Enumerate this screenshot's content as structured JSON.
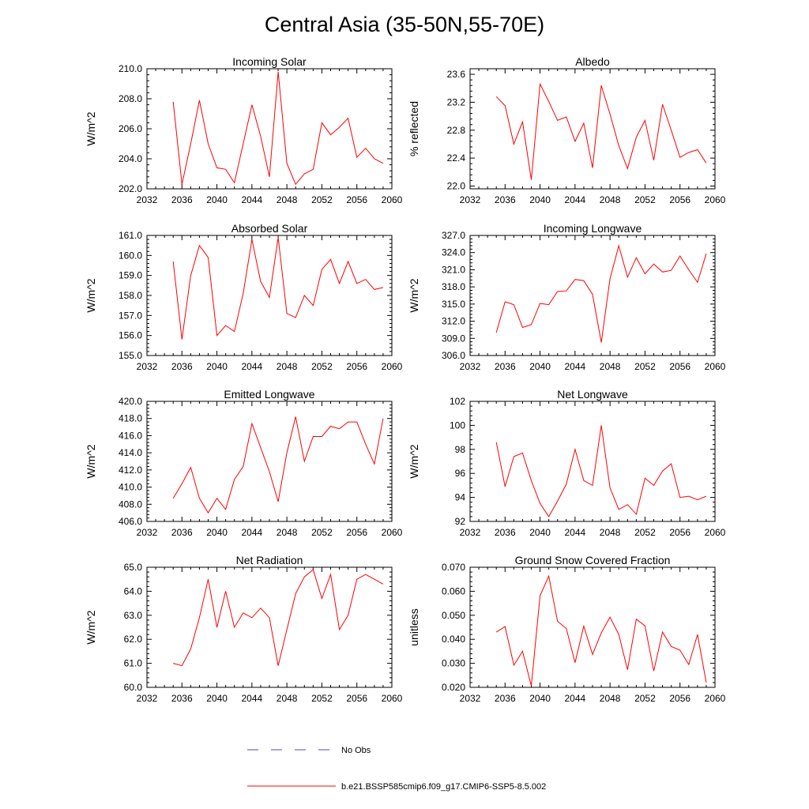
{
  "figure": {
    "title": "Central Asia (35-50N,55-70E)",
    "legend": [
      {
        "label": "No Obs",
        "style": "dashed",
        "color": "#4a4aa8"
      },
      {
        "label": "b.e21.BSSP585cmip6.f09_g17.CMIP6-SSP5-8.5.002",
        "style": "solid",
        "color": "#ff0000"
      }
    ]
  },
  "chart_data": [
    {
      "type": "line",
      "title": "Incoming Solar",
      "ylabel": "W/m^2",
      "xlim": [
        2032,
        2060
      ],
      "ylim": [
        202.0,
        210.0
      ],
      "xticks": [
        2032,
        2036,
        2040,
        2044,
        2048,
        2052,
        2056,
        2060
      ],
      "yticks": [
        "202.0",
        "204.0",
        "206.0",
        "208.0",
        "210.0"
      ],
      "line_color": "#ff0000",
      "x": [
        2035,
        2036,
        2037,
        2038,
        2039,
        2040,
        2041,
        2042,
        2043,
        2044,
        2045,
        2046,
        2047,
        2048,
        2049,
        2050,
        2051,
        2052,
        2053,
        2054,
        2055,
        2056,
        2057,
        2058,
        2059
      ],
      "y": [
        207.8,
        202.3,
        205.0,
        207.9,
        205.0,
        203.4,
        203.3,
        202.4,
        205.0,
        207.6,
        205.5,
        202.8,
        209.8,
        203.7,
        202.3,
        203.0,
        203.3,
        206.4,
        205.6,
        206.1,
        206.7,
        204.1,
        204.7,
        204.0,
        203.7
      ]
    },
    {
      "type": "line",
      "title": "Albedo",
      "ylabel": "% reflected",
      "xlim": [
        2032,
        2060
      ],
      "ylim": [
        21.96,
        23.68
      ],
      "xticks": [
        2032,
        2036,
        2040,
        2044,
        2048,
        2052,
        2056,
        2060
      ],
      "yticks": [
        "22.0",
        "22.4",
        "22.8",
        "23.2",
        "23.6"
      ],
      "line_color": "#ff0000",
      "x": [
        2035,
        2036,
        2037,
        2038,
        2039,
        2040,
        2041,
        2042,
        2043,
        2044,
        2045,
        2046,
        2047,
        2048,
        2049,
        2050,
        2051,
        2052,
        2053,
        2054,
        2055,
        2056,
        2057,
        2058,
        2059
      ],
      "y": [
        23.28,
        23.15,
        22.6,
        22.92,
        22.09,
        23.46,
        23.21,
        22.94,
        22.99,
        22.64,
        22.9,
        22.26,
        23.44,
        23.03,
        22.58,
        22.25,
        22.7,
        22.94,
        22.37,
        23.17,
        22.8,
        22.41,
        22.48,
        22.52,
        22.33
      ]
    },
    {
      "type": "line",
      "title": "Absorbed Solar",
      "ylabel": "W/m^2",
      "xlim": [
        2032,
        2060
      ],
      "ylim": [
        155.0,
        161.0
      ],
      "xticks": [
        2032,
        2036,
        2040,
        2044,
        2048,
        2052,
        2056,
        2060
      ],
      "yticks": [
        "155.0",
        "156.0",
        "157.0",
        "158.0",
        "159.0",
        "160.0",
        "161.0"
      ],
      "line_color": "#ff0000",
      "x": [
        2035,
        2036,
        2037,
        2038,
        2039,
        2040,
        2041,
        2042,
        2043,
        2044,
        2045,
        2046,
        2047,
        2048,
        2049,
        2050,
        2051,
        2052,
        2053,
        2054,
        2055,
        2056,
        2057,
        2058,
        2059
      ],
      "y": [
        159.7,
        155.8,
        159.0,
        160.5,
        159.9,
        156.0,
        156.5,
        156.2,
        158.1,
        160.8,
        158.7,
        157.9,
        160.9,
        157.1,
        156.9,
        158.0,
        157.5,
        159.3,
        159.8,
        158.6,
        159.7,
        158.6,
        158.8,
        158.3,
        158.4
      ]
    },
    {
      "type": "line",
      "title": "Incoming Longwave",
      "ylabel": "W/m^2",
      "xlim": [
        2032,
        2060
      ],
      "ylim": [
        306.0,
        327.0
      ],
      "xticks": [
        2032,
        2036,
        2040,
        2044,
        2048,
        2052,
        2056,
        2060
      ],
      "yticks": [
        "306.0",
        "309.0",
        "312.0",
        "315.0",
        "318.0",
        "321.0",
        "324.0",
        "327.0"
      ],
      "line_color": "#ff0000",
      "x": [
        2035,
        2036,
        2037,
        2038,
        2039,
        2040,
        2041,
        2042,
        2043,
        2044,
        2045,
        2046,
        2047,
        2048,
        2049,
        2050,
        2051,
        2052,
        2053,
        2054,
        2055,
        2056,
        2057,
        2058,
        2059
      ],
      "y": [
        310.0,
        315.4,
        314.9,
        310.9,
        311.4,
        315.1,
        314.9,
        317.2,
        317.3,
        319.3,
        319.1,
        316.7,
        308.3,
        319.4,
        325.2,
        319.7,
        323.1,
        320.3,
        322.0,
        320.6,
        320.9,
        323.4,
        321.0,
        318.8,
        323.8
      ]
    },
    {
      "type": "line",
      "title": "Emitted Longwave",
      "ylabel": "W/m^2",
      "xlim": [
        2032,
        2060
      ],
      "ylim": [
        406.0,
        420.0
      ],
      "xticks": [
        2032,
        2036,
        2040,
        2044,
        2048,
        2052,
        2056,
        2060
      ],
      "yticks": [
        "406.0",
        "408.0",
        "410.0",
        "412.0",
        "414.0",
        "416.0",
        "418.0",
        "420.0"
      ],
      "line_color": "#ff0000",
      "x": [
        2035,
        2036,
        2037,
        2038,
        2039,
        2040,
        2041,
        2042,
        2043,
        2044,
        2045,
        2046,
        2047,
        2048,
        2049,
        2050,
        2051,
        2052,
        2053,
        2054,
        2055,
        2056,
        2057,
        2058,
        2059
      ],
      "y": [
        408.7,
        410.4,
        412.3,
        408.7,
        407.0,
        408.7,
        407.4,
        410.9,
        412.4,
        417.4,
        414.6,
        411.8,
        408.3,
        414.0,
        418.2,
        413.0,
        415.9,
        415.9,
        417.1,
        416.8,
        417.6,
        417.6,
        415.0,
        412.7,
        418.0
      ]
    },
    {
      "type": "line",
      "title": "Net Longwave",
      "ylabel": "W/m^2",
      "xlim": [
        2032,
        2060
      ],
      "ylim": [
        92,
        102
      ],
      "xticks": [
        2032,
        2036,
        2040,
        2044,
        2048,
        2052,
        2056,
        2060
      ],
      "yticks": [
        "92",
        "94",
        "96",
        "98",
        "100",
        "102"
      ],
      "line_color": "#ff0000",
      "x": [
        2035,
        2036,
        2037,
        2038,
        2039,
        2040,
        2041,
        2042,
        2043,
        2044,
        2045,
        2046,
        2047,
        2048,
        2049,
        2050,
        2051,
        2052,
        2053,
        2054,
        2055,
        2056,
        2057,
        2058,
        2059
      ],
      "y": [
        98.6,
        94.9,
        97.4,
        97.7,
        95.4,
        93.5,
        92.4,
        93.7,
        95.1,
        98.0,
        95.4,
        95.0,
        100.0,
        94.8,
        93.0,
        93.4,
        92.6,
        95.6,
        95.0,
        96.2,
        96.8,
        94.0,
        94.1,
        93.8,
        94.1
      ]
    },
    {
      "type": "line",
      "title": "Net Radiation",
      "ylabel": "W/m^2",
      "xlim": [
        2032,
        2060
      ],
      "ylim": [
        60.0,
        65.0
      ],
      "xticks": [
        2032,
        2036,
        2040,
        2044,
        2048,
        2052,
        2056,
        2060
      ],
      "yticks": [
        "60.0",
        "61.0",
        "62.0",
        "63.0",
        "64.0",
        "65.0"
      ],
      "line_color": "#ff0000",
      "x": [
        2035,
        2036,
        2037,
        2038,
        2039,
        2040,
        2041,
        2042,
        2043,
        2044,
        2045,
        2046,
        2047,
        2048,
        2049,
        2050,
        2051,
        2052,
        2053,
        2054,
        2055,
        2056,
        2057,
        2058,
        2059
      ],
      "y": [
        61.0,
        60.9,
        61.6,
        62.9,
        64.5,
        62.5,
        64.0,
        62.5,
        63.1,
        62.9,
        63.3,
        62.9,
        60.9,
        62.4,
        63.9,
        64.6,
        64.9,
        63.7,
        64.7,
        62.4,
        63.0,
        64.5,
        64.7,
        64.5,
        64.3
      ]
    },
    {
      "type": "line",
      "title": "Ground Snow Covered Fraction",
      "ylabel": "unitless",
      "xlim": [
        2032,
        2060
      ],
      "ylim": [
        0.02,
        0.07
      ],
      "xticks": [
        2032,
        2036,
        2040,
        2044,
        2048,
        2052,
        2056,
        2060
      ],
      "yticks": [
        "0.020",
        "0.030",
        "0.040",
        "0.050",
        "0.060",
        "0.070"
      ],
      "line_color": "#ff0000",
      "x": [
        2035,
        2036,
        2037,
        2038,
        2039,
        2040,
        2041,
        2042,
        2043,
        2044,
        2045,
        2046,
        2047,
        2048,
        2049,
        2050,
        2051,
        2052,
        2053,
        2054,
        2055,
        2056,
        2057,
        2058,
        2059
      ],
      "y": [
        0.043,
        0.0453,
        0.0292,
        0.035,
        0.0206,
        0.0582,
        0.0663,
        0.0475,
        0.0445,
        0.0303,
        0.0455,
        0.0337,
        0.0427,
        0.0492,
        0.042,
        0.0273,
        0.0484,
        0.0456,
        0.0268,
        0.043,
        0.037,
        0.0355,
        0.0295,
        0.042,
        0.022
      ]
    }
  ]
}
